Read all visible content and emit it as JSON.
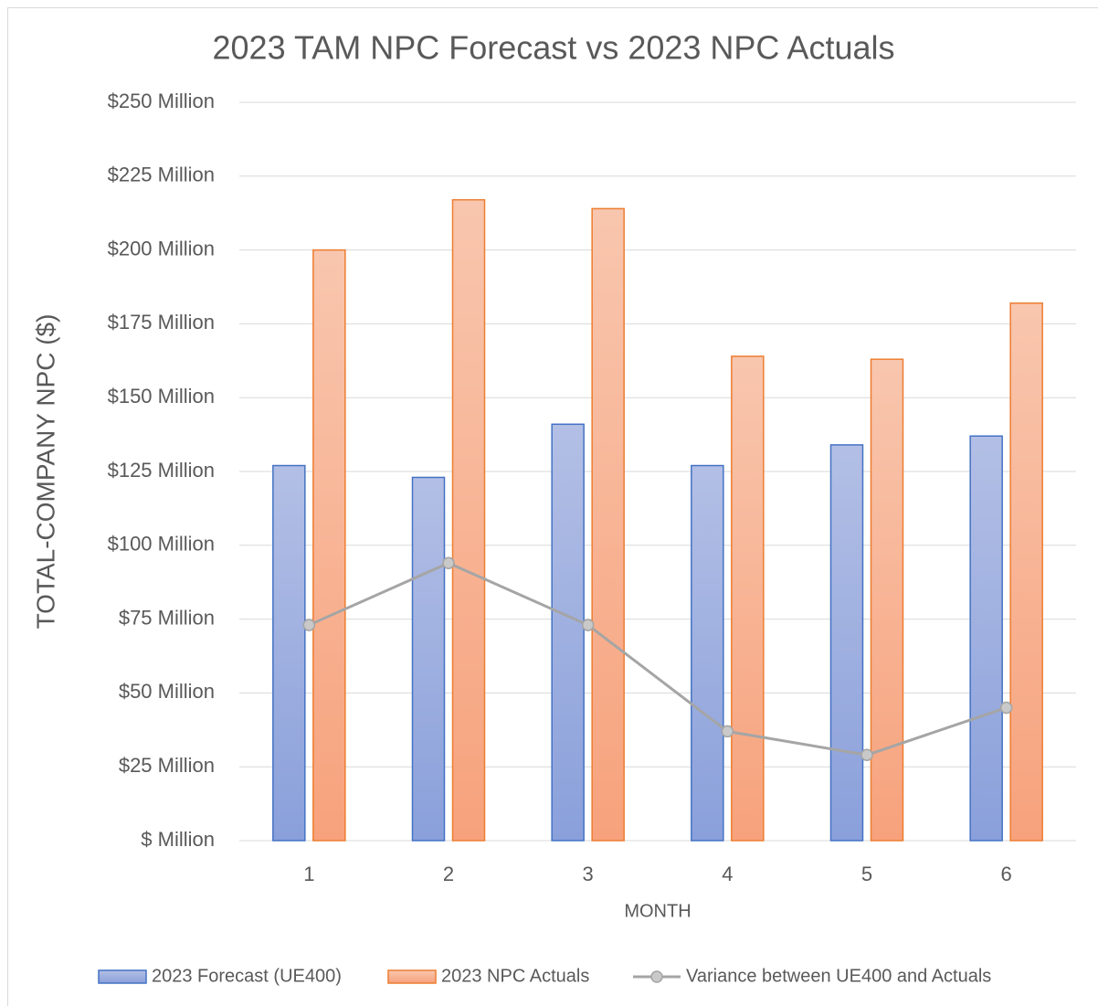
{
  "chart_data": {
    "type": "bar",
    "title": "2023 TAM NPC Forecast vs 2023 NPC Actuals",
    "x_label": "MONTH",
    "y_label": "TOTAL-COMPANY NPC ($)",
    "categories": [
      "1",
      "2",
      "3",
      "4",
      "5",
      "6"
    ],
    "series": [
      {
        "name": "2023 Forecast (UE400)",
        "type": "bar",
        "color": "#4472c4",
        "values": [
          127,
          123,
          141,
          127,
          134,
          137
        ]
      },
      {
        "name": "2023 NPC Actuals",
        "type": "bar",
        "color": "#ed7d31",
        "values": [
          200,
          217,
          214,
          164,
          163,
          182
        ]
      },
      {
        "name": "Variance between UE400 and Actuals",
        "type": "line",
        "color": "#a5a5a5",
        "values": [
          73,
          94,
          73,
          37,
          29,
          45
        ]
      }
    ],
    "ylim": [
      0,
      250
    ],
    "yticks": [
      {
        "value": 0,
        "label": "$ Million"
      },
      {
        "value": 25,
        "label": "$25 Million"
      },
      {
        "value": 50,
        "label": "$50 Million"
      },
      {
        "value": 75,
        "label": "$75 Million"
      },
      {
        "value": 100,
        "label": "$100 Million"
      },
      {
        "value": 125,
        "label": "$125 Million"
      },
      {
        "value": 150,
        "label": "$150 Million"
      },
      {
        "value": 175,
        "label": "$175 Million"
      },
      {
        "value": 200,
        "label": "$200 Million"
      },
      {
        "value": 225,
        "label": "$225 Million"
      },
      {
        "value": 250,
        "label": "$250 Million"
      }
    ],
    "grid": true,
    "legend": "bottom"
  }
}
